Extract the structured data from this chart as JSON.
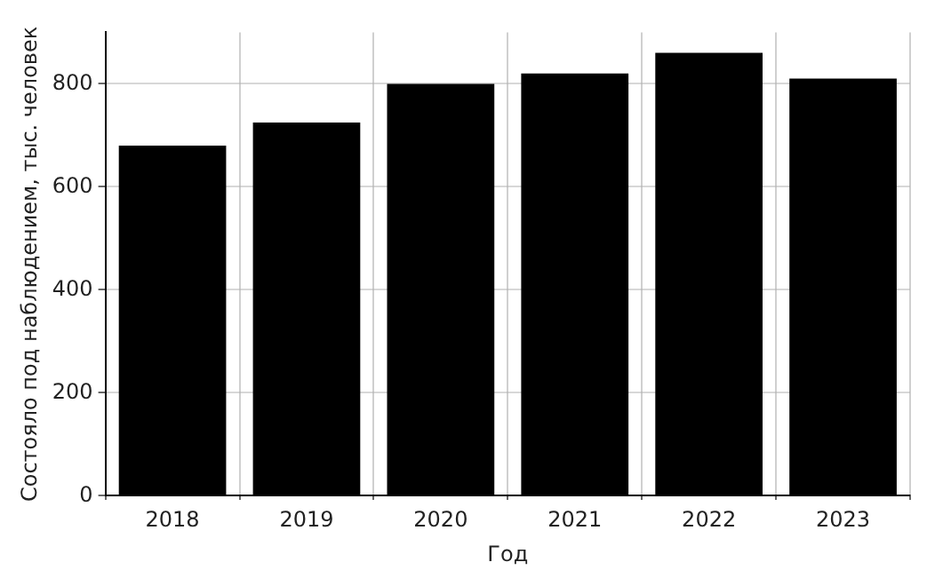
{
  "chart_data": {
    "type": "bar",
    "xlabel": "Год",
    "ylabel": "Состояло под наблюдением, тыс. человек",
    "categories": [
      "2018",
      "2019",
      "2020",
      "2021",
      "2022",
      "2023"
    ],
    "series": [
      {
        "color": "#000000",
        "values": [
          680,
          725,
          800,
          820,
          860,
          810
        ]
      }
    ],
    "ylim": [
      0,
      900
    ],
    "yticks": [
      0,
      200,
      400,
      600,
      800
    ],
    "grid": true,
    "legend": false
  }
}
